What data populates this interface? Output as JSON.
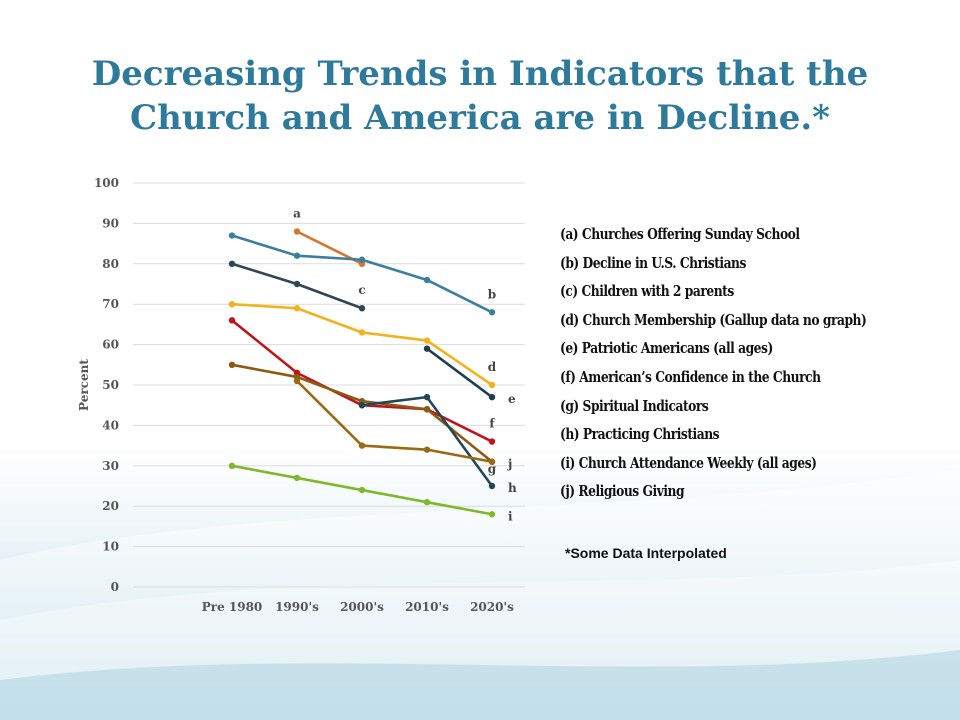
{
  "slide": {
    "title": "Decreasing Trends in Indicators that the Church and America are in Decline.*",
    "footnote": "*Some Data Interpolated"
  },
  "legend": [
    "(a) Churches Offering Sunday School",
    "(b) Decline in U.S. Christians",
    "(c) Children with 2 parents",
    "(d) Church Membership (Gallup data no graph)",
    "(e) Patriotic Americans (all ages)",
    "(f) American’s Confidence in the     Church",
    "(g) Spiritual Indicators",
    "(h) Practicing Christians",
    "(i) Church Attendance Weekly (all ages)",
    "(j) Religious Giving"
  ],
  "chart_data": {
    "type": "line",
    "categories": [
      "Pre 1980",
      "1990's",
      "2000's",
      "2010's",
      "2020's"
    ],
    "ylabel": "Percent",
    "ylim": [
      0,
      100
    ],
    "yticks": [
      0,
      10,
      20,
      30,
      40,
      50,
      60,
      70,
      80,
      90,
      100
    ],
    "grid": true,
    "legend_position": "right",
    "series": [
      {
        "label": "a",
        "label_at": 1,
        "label_side": "above",
        "color": "#d9732e",
        "values": [
          null,
          88,
          80,
          null,
          null
        ]
      },
      {
        "label": "b",
        "label_at": 4,
        "label_side": "above",
        "color": "#3b7f9f",
        "values": [
          87,
          82,
          81,
          76,
          68
        ]
      },
      {
        "label": "c",
        "label_at": 2,
        "label_side": "above",
        "color": "#2e4656",
        "values": [
          80,
          75,
          69,
          null,
          null
        ]
      },
      {
        "label": "d",
        "label_at": 4,
        "label_side": "above",
        "color": "#f2b21c",
        "values": [
          70,
          69,
          63,
          61,
          50
        ]
      },
      {
        "label": "e",
        "label_at": 4,
        "label_side": "right",
        "color": "#1f3b4d",
        "values": [
          null,
          null,
          null,
          59,
          47
        ]
      },
      {
        "label": "f",
        "label_at": 4,
        "label_side": "above",
        "color": "#c0141b",
        "values": [
          66,
          53,
          45,
          44,
          36
        ]
      },
      {
        "label": "g",
        "label_at": 4,
        "label_side": "below",
        "color": "#8c5a12",
        "values": [
          55,
          52,
          46,
          44,
          31
        ]
      },
      {
        "label": "h",
        "label_at": 4,
        "label_side": "right",
        "color": "#22475a",
        "values": [
          null,
          null,
          45,
          47,
          25
        ]
      },
      {
        "label": "i",
        "label_at": 4,
        "label_side": "right",
        "color": "#7fb82a",
        "values": [
          30,
          27,
          24,
          21,
          18
        ]
      },
      {
        "label": "j",
        "label_at": 4,
        "label_side": "right",
        "color": "#9a6a12",
        "values": [
          null,
          51,
          35,
          34,
          31
        ]
      }
    ]
  }
}
